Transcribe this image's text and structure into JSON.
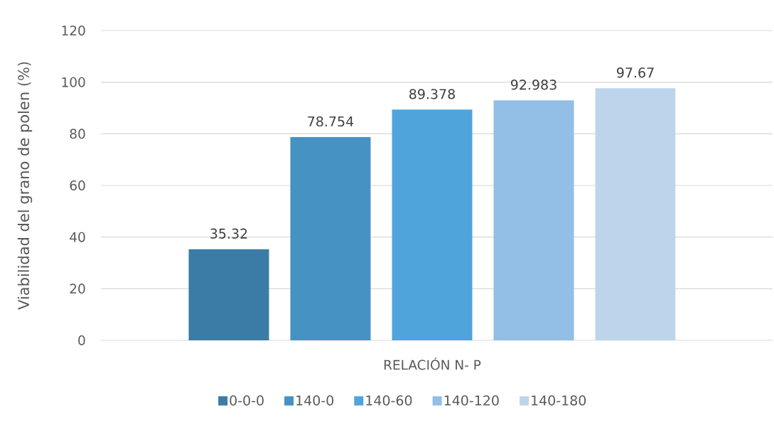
{
  "chart_data": {
    "type": "bar",
    "ylabel": "Viabilidad del grano de polen (%)",
    "categories": [
      "RELACIÓN N- P"
    ],
    "series": [
      {
        "name": "0-0-0",
        "color": "#3a7ca5",
        "values": [
          35.32
        ],
        "value_labels": [
          "35.32"
        ]
      },
      {
        "name": "140-0",
        "color": "#4592c3",
        "values": [
          78.754
        ],
        "value_labels": [
          "78.754"
        ]
      },
      {
        "name": "140-60",
        "color": "#4fa4db",
        "values": [
          89.378
        ],
        "value_labels": [
          "89.378"
        ]
      },
      {
        "name": "140-120",
        "color": "#93bee6",
        "values": [
          92.983
        ],
        "value_labels": [
          "92.983"
        ]
      },
      {
        "name": "140-180",
        "color": "#bdd5eb",
        "values": [
          97.67
        ],
        "value_labels": [
          "97.67"
        ]
      }
    ],
    "ylim": [
      0,
      120
    ],
    "yticks": [
      0,
      20,
      40,
      60,
      80,
      100,
      120
    ],
    "grid": "y",
    "legend": "bottom"
  }
}
